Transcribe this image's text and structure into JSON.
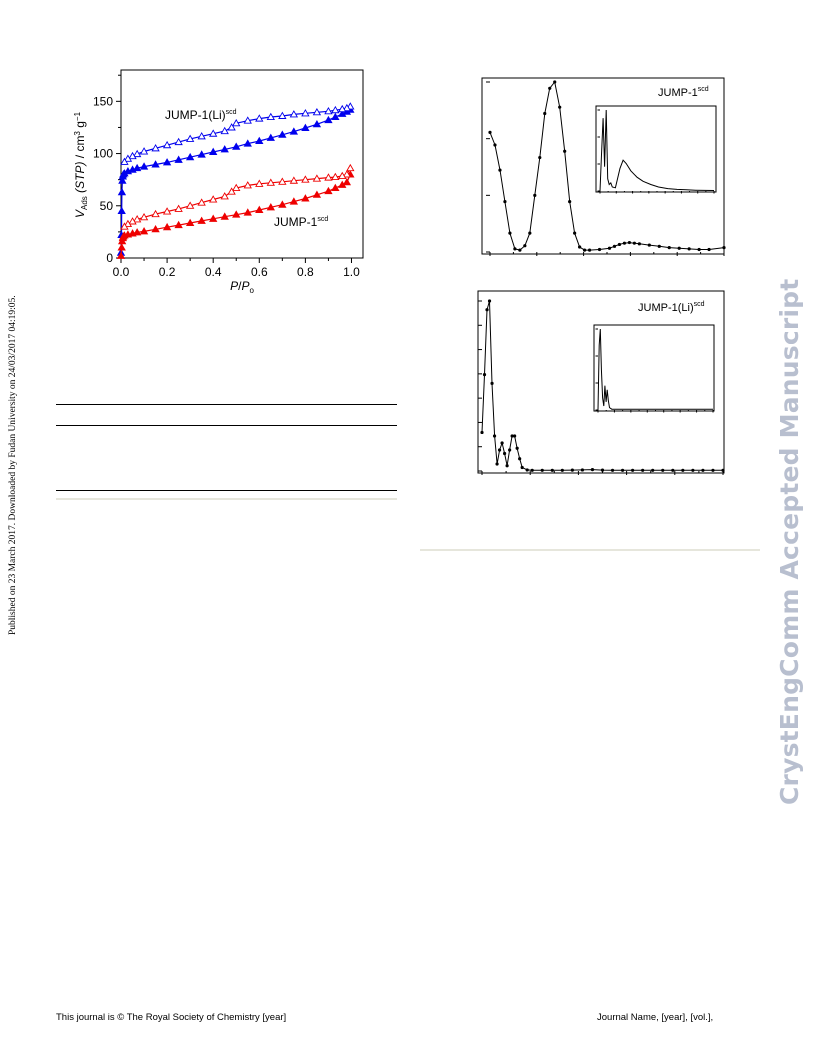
{
  "side_notice": "Published on 23 March 2017. Downloaded by Fudan University on 24/03/2017 04:19:05.",
  "watermark": "CrystEngComm Accepted Manuscript",
  "footer": {
    "left": "This journal is © The Royal Society of Chemistry [year]",
    "right": "Journal Name, [year], [vol.],"
  },
  "chart_data": [
    {
      "type": "scatter",
      "title": "",
      "xlabel": "P/Po",
      "ylabel": "VAds (STP) / cm3 g-1",
      "xlim": [
        0,
        1.05
      ],
      "ylim": [
        0,
        180
      ],
      "xticks": [
        "0.0",
        "0.2",
        "0.4",
        "0.6",
        "0.8",
        "1.0"
      ],
      "yticks": [
        "0",
        "50",
        "100",
        "150"
      ],
      "annotations": [
        {
          "label_base": "JUMP-1(Li)",
          "label_sup": "scd"
        },
        {
          "label_base": "JUMP-1",
          "label_sup": "scd"
        }
      ],
      "series": [
        {
          "color": "#0000ee",
          "marker": "triangle-filled",
          "branch": "adsorption",
          "points": [
            [
              0.0,
              5
            ],
            [
              0.002,
              22
            ],
            [
              0.003,
              45
            ],
            [
              0.004,
              63
            ],
            [
              0.006,
              74
            ],
            [
              0.008,
              78
            ],
            [
              0.01,
              80
            ],
            [
              0.015,
              81
            ],
            [
              0.03,
              83
            ],
            [
              0.05,
              84.5
            ],
            [
              0.07,
              86
            ],
            [
              0.1,
              87.5
            ],
            [
              0.15,
              89.5
            ],
            [
              0.2,
              91.5
            ],
            [
              0.25,
              94
            ],
            [
              0.3,
              96.5
            ],
            [
              0.35,
              99
            ],
            [
              0.4,
              101.5
            ],
            [
              0.45,
              104
            ],
            [
              0.5,
              106.5
            ],
            [
              0.55,
              109.5
            ],
            [
              0.6,
              112
            ],
            [
              0.65,
              115
            ],
            [
              0.7,
              118
            ],
            [
              0.75,
              121
            ],
            [
              0.8,
              124.5
            ],
            [
              0.85,
              128
            ],
            [
              0.9,
              132
            ],
            [
              0.93,
              135
            ],
            [
              0.96,
              138
            ],
            [
              0.98,
              140
            ],
            [
              0.995,
              142
            ]
          ]
        },
        {
          "color": "#0000ee",
          "marker": "triangle-open",
          "branch": "desorption",
          "points": [
            [
              0.995,
              145
            ],
            [
              0.98,
              143.5
            ],
            [
              0.96,
              142.5
            ],
            [
              0.93,
              141.5
            ],
            [
              0.9,
              140.5
            ],
            [
              0.85,
              139.5
            ],
            [
              0.8,
              138.5
            ],
            [
              0.75,
              137.5
            ],
            [
              0.7,
              136
            ],
            [
              0.65,
              135
            ],
            [
              0.6,
              133.5
            ],
            [
              0.55,
              131.5
            ],
            [
              0.5,
              129
            ],
            [
              0.48,
              125
            ],
            [
              0.45,
              121.5
            ],
            [
              0.4,
              119
            ],
            [
              0.35,
              116.5
            ],
            [
              0.3,
              114
            ],
            [
              0.25,
              111
            ],
            [
              0.2,
              108
            ],
            [
              0.15,
              105
            ],
            [
              0.1,
              102
            ],
            [
              0.07,
              99.5
            ],
            [
              0.05,
              97.5
            ],
            [
              0.03,
              95
            ],
            [
              0.015,
              92
            ]
          ]
        },
        {
          "color": "#ee0000",
          "marker": "triangle-filled",
          "branch": "adsorption",
          "points": [
            [
              0.0,
              2
            ],
            [
              0.003,
              10
            ],
            [
              0.005,
              16
            ],
            [
              0.008,
              19
            ],
            [
              0.01,
              20.5
            ],
            [
              0.015,
              21.5
            ],
            [
              0.03,
              22.5
            ],
            [
              0.05,
              23.5
            ],
            [
              0.07,
              24.5
            ],
            [
              0.1,
              25.5
            ],
            [
              0.15,
              27.5
            ],
            [
              0.2,
              29.5
            ],
            [
              0.25,
              31.5
            ],
            [
              0.3,
              33.5
            ],
            [
              0.35,
              35.5
            ],
            [
              0.4,
              37.5
            ],
            [
              0.45,
              39.5
            ],
            [
              0.5,
              41.5
            ],
            [
              0.55,
              43.5
            ],
            [
              0.6,
              46
            ],
            [
              0.65,
              48.5
            ],
            [
              0.7,
              51
            ],
            [
              0.75,
              54
            ],
            [
              0.8,
              57
            ],
            [
              0.85,
              60.5
            ],
            [
              0.9,
              64
            ],
            [
              0.93,
              67
            ],
            [
              0.96,
              70
            ],
            [
              0.98,
              72.5
            ],
            [
              0.995,
              80
            ]
          ]
        },
        {
          "color": "#ee0000",
          "marker": "triangle-open",
          "branch": "desorption",
          "points": [
            [
              0.995,
              86
            ],
            [
              0.98,
              80
            ],
            [
              0.96,
              78.5
            ],
            [
              0.93,
              77.5
            ],
            [
              0.9,
              77
            ],
            [
              0.85,
              76
            ],
            [
              0.8,
              75
            ],
            [
              0.75,
              74
            ],
            [
              0.7,
              73
            ],
            [
              0.65,
              72
            ],
            [
              0.6,
              71
            ],
            [
              0.55,
              69.5
            ],
            [
              0.5,
              67
            ],
            [
              0.48,
              63.5
            ],
            [
              0.45,
              59
            ],
            [
              0.4,
              56
            ],
            [
              0.35,
              53
            ],
            [
              0.3,
              50
            ],
            [
              0.25,
              47
            ],
            [
              0.2,
              44.5
            ],
            [
              0.15,
              42
            ],
            [
              0.1,
              39
            ],
            [
              0.07,
              37
            ],
            [
              0.05,
              35
            ],
            [
              0.03,
              32.5
            ],
            [
              0.015,
              30
            ]
          ]
        }
      ]
    },
    {
      "type": "line",
      "title": "",
      "xlabel": "",
      "ylabel": "",
      "annotation": {
        "label_base": "JUMP-1",
        "label_sup": "scd"
      },
      "points": [
        [
          0,
          0.19
        ],
        [
          1,
          0.17
        ],
        [
          2,
          0.13
        ],
        [
          3,
          0.08
        ],
        [
          4,
          0.03
        ],
        [
          5,
          0.005
        ],
        [
          6,
          0.003
        ],
        [
          7,
          0.01
        ],
        [
          8,
          0.03
        ],
        [
          9,
          0.09
        ],
        [
          10,
          0.15
        ],
        [
          11,
          0.22
        ],
        [
          12,
          0.26
        ],
        [
          13,
          0.27
        ],
        [
          14,
          0.23
        ],
        [
          15,
          0.16
        ],
        [
          16,
          0.08
        ],
        [
          17,
          0.03
        ],
        [
          18,
          0.008
        ],
        [
          19,
          0.003
        ],
        [
          20,
          0.003
        ],
        [
          22,
          0.004
        ],
        [
          24,
          0.006
        ],
        [
          25,
          0.009
        ],
        [
          26,
          0.012
        ],
        [
          27,
          0.014
        ],
        [
          28,
          0.015
        ],
        [
          29,
          0.014
        ],
        [
          30,
          0.013
        ],
        [
          32,
          0.011
        ],
        [
          34,
          0.009
        ],
        [
          36,
          0.007
        ],
        [
          38,
          0.006
        ],
        [
          40,
          0.005
        ],
        [
          42,
          0.004
        ],
        [
          44,
          0.004
        ],
        [
          47,
          0.007
        ]
      ],
      "inset": {
        "points": [
          [
            0,
            0.0
          ],
          [
            1,
            0.45
          ],
          [
            2,
            0.9
          ],
          [
            3,
            0.3
          ],
          [
            4,
            1.0
          ],
          [
            5,
            0.15
          ],
          [
            6,
            0.08
          ],
          [
            7,
            0.1
          ],
          [
            8,
            0.05
          ],
          [
            10,
            0.04
          ],
          [
            13,
            0.28
          ],
          [
            15,
            0.38
          ],
          [
            17,
            0.34
          ],
          [
            20,
            0.25
          ],
          [
            24,
            0.17
          ],
          [
            28,
            0.12
          ],
          [
            33,
            0.08
          ],
          [
            38,
            0.05
          ],
          [
            44,
            0.03
          ],
          [
            50,
            0.02
          ],
          [
            56,
            0.015
          ],
          [
            62,
            0.01
          ],
          [
            68,
            0.008
          ],
          [
            74,
            0.006
          ]
        ]
      }
    },
    {
      "type": "line",
      "title": "",
      "xlabel": "",
      "ylabel": "",
      "annotation": {
        "label_base": "JUMP-1(Li)",
        "label_sup": "scd"
      },
      "points": [
        [
          0,
          0.22
        ],
        [
          0.5,
          0.55
        ],
        [
          1,
          0.92
        ],
        [
          1.5,
          0.97
        ],
        [
          2,
          0.5
        ],
        [
          2.5,
          0.2
        ],
        [
          3,
          0.04
        ],
        [
          3.5,
          0.12
        ],
        [
          4,
          0.16
        ],
        [
          4.5,
          0.1
        ],
        [
          5,
          0.03
        ],
        [
          5.5,
          0.12
        ],
        [
          6,
          0.2
        ],
        [
          6.5,
          0.2
        ],
        [
          7,
          0.13
        ],
        [
          7.5,
          0.07
        ],
        [
          8,
          0.02
        ],
        [
          9,
          0.006
        ],
        [
          10,
          0.004
        ],
        [
          12,
          0.004
        ],
        [
          14,
          0.004
        ],
        [
          16,
          0.004
        ],
        [
          18,
          0.005
        ],
        [
          20,
          0.006
        ],
        [
          22,
          0.008
        ],
        [
          24,
          0.005
        ],
        [
          26,
          0.004
        ],
        [
          28,
          0.004
        ],
        [
          30,
          0.004
        ],
        [
          32,
          0.004
        ],
        [
          34,
          0.004
        ],
        [
          36,
          0.004
        ],
        [
          38,
          0.004
        ],
        [
          40,
          0.004
        ],
        [
          42,
          0.004
        ],
        [
          44,
          0.004
        ],
        [
          46,
          0.004
        ],
        [
          48,
          0.004
        ]
      ],
      "inset": {
        "points": [
          [
            0,
            0.0
          ],
          [
            0.5,
            0.8
          ],
          [
            1,
            1.0
          ],
          [
            1.5,
            0.5
          ],
          [
            2,
            0.15
          ],
          [
            2.5,
            0.05
          ],
          [
            3,
            0.3
          ],
          [
            3.5,
            0.1
          ],
          [
            4,
            0.25
          ],
          [
            4.5,
            0.12
          ],
          [
            5,
            0.03
          ],
          [
            6,
            0.01
          ],
          [
            8,
            0.01
          ],
          [
            12,
            0.01
          ],
          [
            16,
            0.01
          ],
          [
            20,
            0.01
          ],
          [
            25,
            0.01
          ],
          [
            30,
            0.01
          ],
          [
            35,
            0.01
          ],
          [
            40,
            0.01
          ],
          [
            45,
            0.01
          ],
          [
            50,
            0.01
          ]
        ]
      }
    }
  ]
}
